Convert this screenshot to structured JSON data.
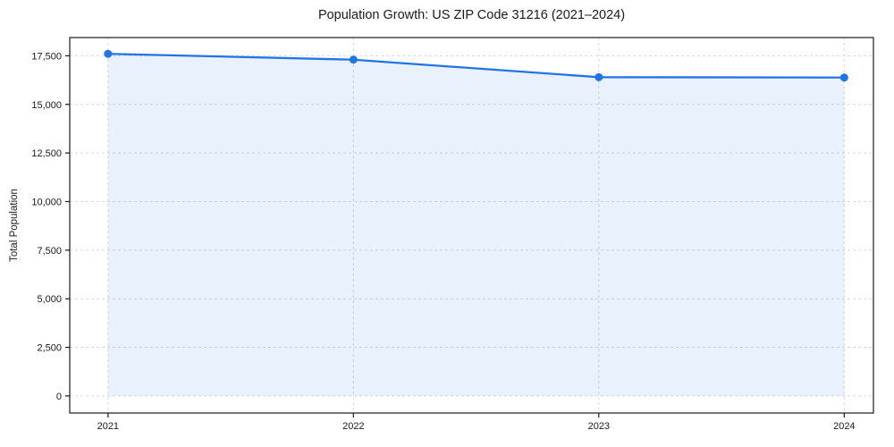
{
  "figure": {
    "background": "#ffffff"
  },
  "chart_data": {
    "type": "line",
    "title": "Population Growth: US ZIP Code 31216 (2021–2024)",
    "xlabel": "",
    "ylabel": "Total Population",
    "categories": [
      2021,
      2022,
      2023,
      2024
    ],
    "series": [
      {
        "name": "Total Population",
        "values": [
          17600,
          17300,
          16400,
          16380
        ]
      }
    ],
    "xticklabels": [
      "2021",
      "2022",
      "2023",
      "2024"
    ],
    "yticks": [
      0,
      2500,
      5000,
      7500,
      10000,
      12500,
      15000,
      17500
    ],
    "yticklabels": [
      "0",
      "2,500",
      "5,000",
      "7,500",
      "10,000",
      "12,500",
      "15,000",
      "17,500"
    ],
    "xlim": [
      2020.844,
      2024.119
    ],
    "ylim": [
      -878,
      18438
    ],
    "grid": true,
    "grid_style": "dashed",
    "legend": false,
    "area_fill": true,
    "area_baseline": 0,
    "colors": {
      "line": "#2273e6",
      "marker": "#2273e6",
      "fill": "rgba(34,115,230,0.10)",
      "grid": "#d9d9d9",
      "spine": "#1a1a1a",
      "text": "#1a1a1a"
    }
  }
}
